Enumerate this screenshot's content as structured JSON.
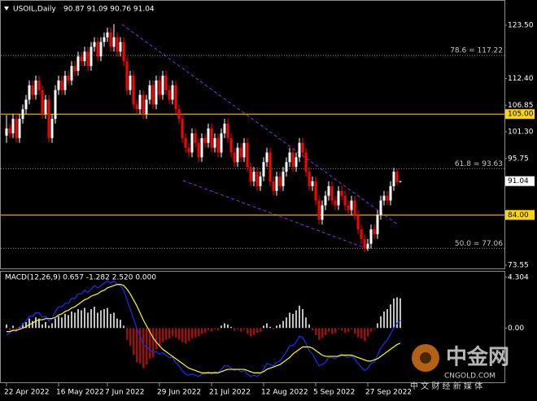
{
  "chart_data": [
    {
      "type": "candlestick",
      "title": "USOIL,Daily",
      "header_values": "90.87 91.09 90.76 91.04",
      "up_color": "#ffffff",
      "down_color": "#ff0000",
      "categories": [
        "22 Apr 2022",
        null,
        null,
        null,
        null,
        null,
        null,
        null,
        null,
        null,
        null,
        null,
        null,
        null,
        null,
        null,
        "16 May 2022",
        null,
        null,
        null,
        null,
        null,
        null,
        null,
        null,
        null,
        null,
        null,
        null,
        null,
        null,
        "7 Jun 2022",
        null,
        null,
        null,
        null,
        null,
        null,
        null,
        null,
        null,
        null,
        null,
        null,
        null,
        null,
        null,
        "29 Jun 2022",
        null,
        null,
        null,
        null,
        null,
        null,
        null,
        null,
        null,
        null,
        null,
        null,
        null,
        null,
        null,
        "21 Jul 2022",
        null,
        null,
        null,
        null,
        null,
        null,
        null,
        null,
        null,
        null,
        null,
        null,
        null,
        null,
        null,
        "12 Aug 2022",
        null,
        null,
        null,
        null,
        null,
        null,
        null,
        null,
        null,
        null,
        null,
        null,
        null,
        null,
        null,
        "5 Sep 2022",
        null,
        null,
        null,
        null,
        null,
        null,
        null,
        null,
        null,
        null,
        null,
        null,
        null,
        null,
        null,
        "27 Sep 2022",
        null,
        null,
        null,
        null,
        null,
        null,
        null,
        null,
        null,
        null
      ],
      "open": [
        100.5,
        102,
        101,
        104,
        100,
        104,
        106,
        108,
        111,
        109,
        112,
        110,
        105,
        108,
        100,
        104,
        110,
        112,
        110,
        113,
        112,
        115,
        114,
        117,
        116,
        118,
        115,
        119,
        120,
        117,
        120,
        121,
        122,
        119,
        121,
        118,
        120,
        116,
        110,
        113,
        107,
        106,
        109,
        105,
        108,
        111,
        107,
        112,
        109,
        113,
        110,
        108,
        111,
        106,
        104,
        100,
        98,
        97,
        101,
        99,
        96,
        100,
        99,
        102,
        98,
        100,
        97,
        101,
        103,
        100,
        97,
        95,
        98,
        96,
        99,
        94,
        91,
        93,
        90,
        92,
        95,
        97,
        91,
        89,
        92,
        90,
        93,
        95,
        97,
        94,
        96,
        99,
        97,
        93,
        90,
        91,
        87,
        83,
        86,
        88,
        90,
        87,
        86,
        89,
        88,
        86,
        85,
        87,
        84,
        81,
        79,
        77,
        78,
        81,
        80,
        84,
        87,
        88,
        87,
        90,
        93,
        90.87
      ],
      "high": [
        104.8,
        103,
        105,
        105,
        105,
        107,
        109,
        112,
        112,
        113,
        113,
        111,
        109,
        109,
        105,
        111,
        113,
        113,
        114,
        114,
        116,
        116,
        118,
        118,
        119,
        119,
        120,
        121,
        121,
        121,
        122,
        123,
        123,
        123.7,
        122,
        121,
        121,
        117,
        114,
        114,
        108,
        110,
        110,
        109,
        112,
        112,
        113,
        113,
        114,
        114,
        111,
        112,
        112,
        107,
        105,
        101,
        99,
        102,
        102,
        100,
        101,
        101,
        103,
        103,
        101,
        101,
        102,
        104,
        104,
        101,
        98,
        99,
        99,
        100,
        100,
        95,
        94,
        94,
        93,
        96,
        98,
        98,
        92,
        93,
        93,
        94,
        96,
        98,
        98,
        97,
        100,
        100,
        98,
        94,
        92,
        92,
        88,
        87,
        89,
        91,
        91,
        88,
        90,
        90,
        89,
        87,
        88,
        88,
        85,
        82,
        80,
        79,
        82,
        82,
        85,
        88,
        89,
        89,
        91,
        93.8,
        93.6,
        91.09
      ],
      "low": [
        99.0,
        100,
        100,
        99,
        99,
        103,
        105,
        107,
        108,
        108,
        109,
        104,
        104,
        99,
        99,
        103,
        109,
        109,
        109,
        111,
        111,
        113,
        113,
        115,
        115,
        114,
        114,
        118,
        116,
        116,
        119,
        120,
        118,
        118,
        117,
        117,
        115,
        109,
        109,
        106,
        105,
        105,
        104,
        104,
        107,
        106,
        106,
        108,
        108,
        109,
        107,
        107,
        105,
        103,
        99,
        97,
        96,
        96,
        98,
        95,
        95,
        98,
        98,
        97,
        97,
        96,
        96,
        100,
        99,
        96,
        94,
        94,
        95,
        95,
        93,
        90,
        90,
        89,
        89,
        91,
        94,
        90,
        88,
        88,
        89,
        89,
        92,
        94,
        93,
        93,
        95,
        96,
        92,
        89,
        89,
        86,
        82,
        82,
        85,
        87,
        86,
        85,
        85,
        87,
        85,
        84,
        84,
        83,
        80,
        78,
        76.3,
        76.5,
        77,
        79,
        79,
        83,
        86,
        86,
        86,
        89,
        90.2,
        90.76
      ],
      "close": [
        102,
        101,
        104,
        100,
        104,
        106,
        108,
        111,
        109,
        112,
        110,
        105,
        108,
        100,
        104,
        110,
        112,
        110,
        113,
        112,
        115,
        114,
        117,
        116,
        118,
        115,
        119,
        120,
        117,
        120,
        121,
        122,
        119,
        121,
        118,
        120,
        116,
        110,
        113,
        107,
        106,
        109,
        105,
        108,
        111,
        107,
        112,
        109,
        113,
        110,
        108,
        111,
        106,
        104,
        100,
        98,
        97,
        101,
        99,
        96,
        100,
        99,
        102,
        98,
        100,
        97,
        101,
        103,
        100,
        97,
        95,
        98,
        96,
        99,
        94,
        91,
        93,
        90,
        92,
        95,
        97,
        91,
        89,
        92,
        90,
        93,
        95,
        97,
        94,
        96,
        99,
        97,
        93,
        90,
        91,
        87,
        83,
        86,
        88,
        90,
        87,
        86,
        89,
        88,
        86,
        85,
        87,
        84,
        81,
        79,
        77,
        78,
        81,
        80,
        84,
        87,
        88,
        87,
        90,
        93,
        90.87,
        91.04
      ],
      "ylim": [
        72.87,
        127.9
      ],
      "yticks": [
        {
          "value": 123.5,
          "label": "123.50"
        },
        {
          "value": 112.4,
          "label": "112.40"
        },
        {
          "value": 106.85,
          "label": "106.85"
        },
        {
          "value": 101.3,
          "label": "101.30"
        },
        {
          "value": 95.75,
          "label": "95.75"
        },
        {
          "value": 73.55,
          "label": "73.55"
        }
      ],
      "hlines": [
        {
          "value": 105,
          "label": "105.00",
          "color": "#ffd700"
        },
        {
          "value": 84,
          "label": "84.00",
          "color": "#ffd700"
        }
      ],
      "fib_levels": [
        {
          "value": 117.22,
          "label": "78.6 = 117.22"
        },
        {
          "value": 93.63,
          "label": "61.8 = 93.63"
        },
        {
          "value": 77.06,
          "label": "50.0 = 77.06"
        }
      ],
      "last_price": {
        "value": 91.04,
        "label": "91.04"
      },
      "watermark": {
        "name": "中金网",
        "site": "CNGOLD.COM",
        "slogan": "中 文 财 经 新 媒 体"
      }
    },
    {
      "type": "macd",
      "title": "MACD(12,26,9) 0.657 -1.282 2.520 0.000",
      "ylim": [
        -4.6,
        4.775
      ],
      "yticks": [
        {
          "value": 4.304,
          "label": "4.304"
        },
        {
          "value": 0,
          "label": "0.00"
        }
      ],
      "histogram": {
        "up_color": "#ffffff",
        "down_color": "#ff0000",
        "values": [
          0.3,
          -0.2,
          0.2,
          -0.3,
          0.1,
          0.4,
          0.5,
          0.8,
          0.6,
          0.9,
          0.8,
          0.3,
          0.5,
          0.2,
          0.4,
          0.8,
          1.0,
          0.9,
          1.2,
          1.1,
          1.4,
          1.3,
          1.6,
          1.5,
          1.7,
          1.3,
          1.6,
          1.8,
          1.3,
          1.5,
          1.6,
          1.7,
          1.2,
          1.3,
          0.8,
          0.7,
          0.2,
          -1.0,
          -1.5,
          -2.3,
          -2.9,
          -3.0,
          -3.4,
          -3.1,
          -2.6,
          -2.5,
          -1.8,
          -1.6,
          -1.2,
          -1.0,
          -0.9,
          -0.7,
          -0.8,
          -1.0,
          -1.2,
          -1.3,
          -1.1,
          -0.9,
          -0.8,
          -0.7,
          -0.5,
          -0.4,
          -0.2,
          -0.3,
          -0.1,
          -0.2,
          0.2,
          0.4,
          0.3,
          0.1,
          -0.2,
          -0.1,
          -0.3,
          -0.1,
          -0.5,
          -0.7,
          -0.6,
          -0.4,
          -0.3,
          0.2,
          0.4,
          0.1,
          -0.1,
          0.2,
          0.3,
          0.6,
          0.9,
          1.3,
          1.2,
          1.5,
          1.9,
          1.6,
          0.9,
          0.3,
          -0.2,
          -0.6,
          -1.0,
          -0.8,
          -0.6,
          -0.3,
          -0.5,
          -0.4,
          -0.1,
          -0.2,
          -0.4,
          -0.3,
          -0.1,
          -0.5,
          -0.8,
          -0.9,
          -1.1,
          -0.7,
          -0.3,
          -0.1,
          0.4,
          1.0,
          1.4,
          1.6,
          2.0,
          2.5,
          2.6,
          2.52
        ]
      },
      "series": [
        {
          "color": "#1a2cff",
          "values": [
            -0.6,
            -0.4,
            -0.1,
            -0.3,
            0.0,
            0.3,
            0.6,
            1.0,
            1.0,
            1.3,
            1.3,
            0.9,
            1.0,
            0.6,
            0.8,
            1.4,
            1.8,
            1.8,
            2.1,
            2.1,
            2.5,
            2.5,
            2.9,
            2.9,
            3.2,
            3.0,
            3.3,
            3.6,
            3.4,
            3.6,
            3.8,
            4.0,
            3.8,
            4.0,
            3.7,
            3.6,
            3.2,
            2.4,
            1.6,
            0.8,
            0.0,
            -0.6,
            -1.4,
            -1.6,
            -1.8,
            -2.1,
            -2.0,
            -2.2,
            -2.1,
            -2.3,
            -2.5,
            -2.5,
            -2.9,
            -3.2,
            -3.6,
            -3.9,
            -4.0,
            -3.9,
            -4.0,
            -4.1,
            -3.9,
            -3.9,
            -3.7,
            -3.9,
            -3.7,
            -3.8,
            -3.5,
            -3.2,
            -3.2,
            -3.4,
            -3.6,
            -3.5,
            -3.7,
            -3.6,
            -3.9,
            -4.1,
            -4.0,
            -4.1,
            -3.9,
            -3.5,
            -3.0,
            -3.1,
            -3.2,
            -2.9,
            -2.8,
            -2.4,
            -2.0,
            -1.5,
            -1.5,
            -1.2,
            -0.7,
            -0.8,
            -1.3,
            -1.9,
            -2.2,
            -2.7,
            -3.2,
            -3.1,
            -2.9,
            -2.5,
            -2.5,
            -2.6,
            -2.3,
            -2.2,
            -2.4,
            -2.5,
            -2.4,
            -2.6,
            -3.0,
            -3.3,
            -3.6,
            -3.4,
            -3.0,
            -2.9,
            -2.3,
            -1.7,
            -1.3,
            -1.0,
            -0.5,
            0.0,
            0.4,
            0.657
          ]
        },
        {
          "color": "#ffff00",
          "values": [
            -0.3,
            -0.3,
            -0.2,
            -0.2,
            -0.1,
            0.0,
            0.1,
            0.3,
            0.4,
            0.6,
            0.7,
            0.7,
            0.8,
            0.8,
            0.8,
            0.9,
            1.1,
            1.2,
            1.4,
            1.5,
            1.7,
            1.8,
            2.0,
            2.2,
            2.4,
            2.5,
            2.7,
            2.8,
            2.9,
            3.1,
            3.2,
            3.4,
            3.5,
            3.6,
            3.7,
            3.7,
            3.6,
            3.3,
            2.9,
            2.4,
            1.9,
            1.3,
            0.7,
            0.2,
            -0.3,
            -0.8,
            -1.2,
            -1.5,
            -1.8,
            -2.0,
            -2.2,
            -2.4,
            -2.6,
            -2.8,
            -3.0,
            -3.2,
            -3.4,
            -3.5,
            -3.6,
            -3.7,
            -3.8,
            -3.8,
            -3.8,
            -3.8,
            -3.8,
            -3.8,
            -3.7,
            -3.6,
            -3.5,
            -3.5,
            -3.5,
            -3.5,
            -3.5,
            -3.5,
            -3.6,
            -3.7,
            -3.8,
            -3.8,
            -3.8,
            -3.7,
            -3.5,
            -3.4,
            -3.3,
            -3.2,
            -3.1,
            -2.9,
            -2.7,
            -2.5,
            -2.2,
            -2.0,
            -1.8,
            -1.6,
            -1.6,
            -1.6,
            -1.7,
            -1.9,
            -2.1,
            -2.3,
            -2.4,
            -2.4,
            -2.4,
            -2.4,
            -2.4,
            -2.3,
            -2.3,
            -2.3,
            -2.3,
            -2.4,
            -2.5,
            -2.6,
            -2.7,
            -2.8,
            -2.8,
            -2.7,
            -2.6,
            -2.4,
            -2.2,
            -2.0,
            -1.8,
            -1.6,
            -1.4,
            -1.282
          ]
        }
      ]
    }
  ]
}
